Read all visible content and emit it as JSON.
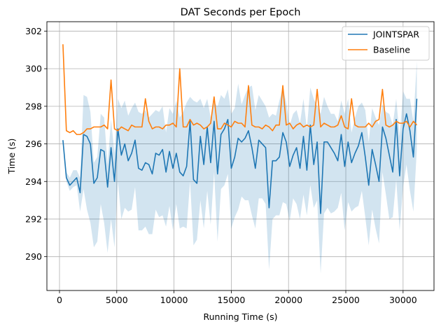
{
  "chart_data": {
    "type": "line",
    "title": "DAT Seconds per Epoch",
    "xlabel": "Running Time (s)",
    "ylabel": "Time (s)",
    "xlim": [
      -1100,
      32700
    ],
    "ylim": [
      288.2,
      302.5
    ],
    "xticks": [
      0,
      5000,
      10000,
      15000,
      20000,
      25000,
      30000
    ],
    "yticks": [
      290,
      292,
      294,
      296,
      298,
      300,
      302
    ],
    "grid": true,
    "legend_position": "top-right",
    "x": [
      300,
      600,
      900,
      1200,
      1500,
      1800,
      2100,
      2400,
      2700,
      3000,
      3300,
      3600,
      3900,
      4200,
      4500,
      4800,
      5100,
      5400,
      5700,
      6000,
      6300,
      6600,
      6900,
      7200,
      7500,
      7800,
      8100,
      8400,
      8700,
      9000,
      9300,
      9600,
      9900,
      10200,
      10500,
      10800,
      11100,
      11400,
      11700,
      12000,
      12300,
      12600,
      12900,
      13200,
      13500,
      13800,
      14100,
      14400,
      14700,
      15000,
      15300,
      15600,
      15900,
      16200,
      16500,
      16800,
      17100,
      17400,
      17700,
      18000,
      18300,
      18600,
      18900,
      19200,
      19500,
      19800,
      20100,
      20400,
      20700,
      21000,
      21300,
      21600,
      21900,
      22200,
      22500,
      22800,
      23100,
      23400,
      23700,
      24000,
      24300,
      24600,
      24900,
      25200,
      25500,
      25800,
      26100,
      26400,
      26700,
      27000,
      27300,
      27600,
      27900,
      28200,
      28500,
      28800,
      29100,
      29400,
      29700,
      30000,
      30300,
      30600,
      30900,
      31200
    ],
    "series": [
      {
        "name": "JOINTSPAR",
        "color": "#1f77b4",
        "values": [
          296.2,
          294.2,
          293.8,
          294.0,
          294.2,
          293.4,
          296.5,
          296.4,
          296.0,
          293.9,
          294.2,
          295.7,
          295.6,
          293.7,
          295.8,
          294.0,
          296.8,
          295.4,
          296.0,
          295.1,
          295.5,
          296.2,
          294.7,
          294.6,
          295.0,
          294.9,
          294.4,
          295.5,
          295.4,
          295.7,
          294.5,
          295.6,
          294.7,
          295.5,
          294.5,
          294.3,
          294.8,
          297.2,
          294.1,
          293.9,
          296.4,
          294.9,
          296.9,
          295.0,
          297.2,
          294.4,
          296.5,
          296.8,
          297.3,
          294.7,
          295.3,
          296.3,
          296.1,
          296.3,
          296.7,
          295.8,
          294.7,
          296.2,
          296.0,
          295.8,
          292.6,
          295.1,
          295.1,
          295.3,
          296.6,
          296.1,
          294.8,
          295.4,
          295.8,
          294.7,
          296.4,
          294.6,
          297.0,
          294.9,
          296.1,
          292.3,
          296.1,
          296.1,
          295.8,
          295.5,
          295.1,
          296.5,
          294.8,
          296.1,
          295.0,
          295.5,
          295.9,
          296.6,
          295.3,
          293.8,
          295.7,
          294.9,
          294.0,
          296.9,
          296.3,
          295.4,
          294.5,
          297.3,
          294.3,
          296.8,
          297.6,
          296.7,
          295.3,
          298.4
        ]
      },
      {
        "name": "Baseline",
        "color": "#ff7f0e",
        "values": [
          301.3,
          296.7,
          296.6,
          296.7,
          296.5,
          296.5,
          296.6,
          296.8,
          296.8,
          296.9,
          296.9,
          296.9,
          297.0,
          296.8,
          299.4,
          296.8,
          296.7,
          296.9,
          296.8,
          296.7,
          297.0,
          296.9,
          296.9,
          296.9,
          298.4,
          297.2,
          296.8,
          296.9,
          296.9,
          296.8,
          297.0,
          297.0,
          297.1,
          296.9,
          300.0,
          296.9,
          296.9,
          297.3,
          297.0,
          297.1,
          297.0,
          296.8,
          296.9,
          297.1,
          298.5,
          296.8,
          296.8,
          297.1,
          297.0,
          296.9,
          297.2,
          297.1,
          297.1,
          296.9,
          299.1,
          297.0,
          296.9,
          296.9,
          296.8,
          297.0,
          296.9,
          296.7,
          297.0,
          297.0,
          299.1,
          297.0,
          297.1,
          296.8,
          297.0,
          297.1,
          296.9,
          297.0,
          296.9,
          297.0,
          298.9,
          296.9,
          297.1,
          297.0,
          296.9,
          296.9,
          297.0,
          297.5,
          296.9,
          296.8,
          298.4,
          297.0,
          296.9,
          296.9,
          296.9,
          297.1,
          296.9,
          297.2,
          297.3,
          298.9,
          297.0,
          296.9,
          297.0,
          297.2,
          297.1,
          297.1,
          297.2,
          296.9,
          297.2,
          297.0
        ]
      }
    ],
    "band": {
      "series": "JOINTSPAR",
      "color": "#1f77b4",
      "opacity": 0.2,
      "upper": [
        296.2,
        294.5,
        294.2,
        294.6,
        294.6,
        294.2,
        298.6,
        298.5,
        297.7,
        295.0,
        295.3,
        297.6,
        297.4,
        294.9,
        297.3,
        295.5,
        298.4,
        297.9,
        298.3,
        297.5,
        297.9,
        298.2,
        297.7,
        297.6,
        297.8,
        297.4,
        297.6,
        297.8,
        297.7,
        298.0,
        296.6,
        297.9,
        297.6,
        298.3,
        297.4,
        297.7,
        298.2,
        298.5,
        298.3,
        298.2,
        298.4,
        297.9,
        298.4,
        297.4,
        298.2,
        298.0,
        298.6,
        298.4,
        298.9,
        297.6,
        297.9,
        299.2,
        298.1,
        298.6,
        299.0,
        299.1,
        297.8,
        298.6,
        298.3,
        298.0,
        297.4,
        297.6,
        297.5,
        298.3,
        299.0,
        298.2,
        297.0,
        297.6,
        297.8,
        297.1,
        298.4,
        296.8,
        299.0,
        298.4,
        298.0,
        297.6,
        298.5,
        298.0,
        297.6,
        297.6,
        297.2,
        298.3,
        297.6,
        298.4,
        296.6,
        297.4,
        298.0,
        298.2,
        297.8,
        296.1,
        297.9,
        297.4,
        297.0,
        298.1,
        297.7,
        297.6,
        297.0,
        298.4,
        296.4,
        298.8,
        298.4,
        298.4,
        297.2,
        300.4
      ]
    },
    "band_lower": [
      296.2,
      294.0,
      293.5,
      293.7,
      293.8,
      292.4,
      293.6,
      292.5,
      291.8,
      290.5,
      290.8,
      292.8,
      291.8,
      290.2,
      292.0,
      290.5,
      294.0,
      292.0,
      292.6,
      292.4,
      292.5,
      293.7,
      291.4,
      291.4,
      291.6,
      291.2,
      291.2,
      292.5,
      292.1,
      292.2,
      291.6,
      292.7,
      291.4,
      292.8,
      291.5,
      291.6,
      291.5,
      294.0,
      290.6,
      290.9,
      293.0,
      291.5,
      293.5,
      291.7,
      294.5,
      290.8,
      293.6,
      293.8,
      294.4,
      291.5,
      292.1,
      292.5,
      293.2,
      293.0,
      293.0,
      292.2,
      291.5,
      293.1,
      293.1,
      292.8,
      289.3,
      292.0,
      292.2,
      292.2,
      292.9,
      292.8,
      291.9,
      293.1,
      292.8,
      292.0,
      293.3,
      292.2,
      293.8,
      292.6,
      293.0,
      289.1,
      292.3,
      292.6,
      292.3,
      292.4,
      292.6,
      293.4,
      291.4,
      292.9,
      292.4,
      292.6,
      292.7,
      293.5,
      292.1,
      290.6,
      292.5,
      291.5,
      290.7,
      294.5,
      293.3,
      292.0,
      292.1,
      294.1,
      291.4,
      293.7,
      294.9,
      293.5,
      292.4,
      295.7
    ]
  }
}
